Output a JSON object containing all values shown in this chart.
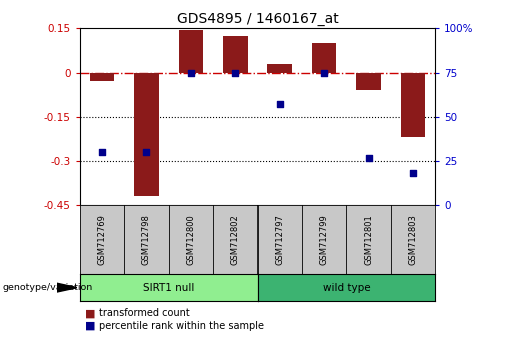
{
  "title": "GDS4895 / 1460167_at",
  "samples": [
    "GSM712769",
    "GSM712798",
    "GSM712800",
    "GSM712802",
    "GSM712797",
    "GSM712799",
    "GSM712801",
    "GSM712803"
  ],
  "bar_values": [
    -0.03,
    -0.42,
    0.145,
    0.125,
    0.03,
    0.1,
    -0.06,
    -0.22
  ],
  "dot_values": [
    30,
    30,
    75,
    75,
    57,
    75,
    27,
    18
  ],
  "ylim_left": [
    -0.45,
    0.15
  ],
  "ylim_right": [
    0,
    100
  ],
  "yticks_left": [
    0.15,
    0,
    -0.15,
    -0.3,
    -0.45
  ],
  "yticks_right": [
    100,
    75,
    50,
    25,
    0
  ],
  "ytick_left_labels": [
    "0.15",
    "0",
    "-0.15",
    "-0.3",
    "-0.45"
  ],
  "ytick_right_labels": [
    "100%",
    "75",
    "50",
    "25",
    "0"
  ],
  "groups": [
    {
      "label": "SIRT1 null",
      "start": 0,
      "end": 4,
      "color": "#90EE90"
    },
    {
      "label": "wild type",
      "start": 4,
      "end": 8,
      "color": "#3CB371"
    }
  ],
  "bar_color": "#8B1A1A",
  "dot_color": "#00008B",
  "hline_color": "#CC0000",
  "dotted_line_color": "#000000",
  "background_color": "#ffffff",
  "sample_bg_color": "#C8C8C8",
  "legend_bar_label": "transformed count",
  "legend_dot_label": "percentile rank within the sample",
  "genotype_label": "genotype/variation"
}
